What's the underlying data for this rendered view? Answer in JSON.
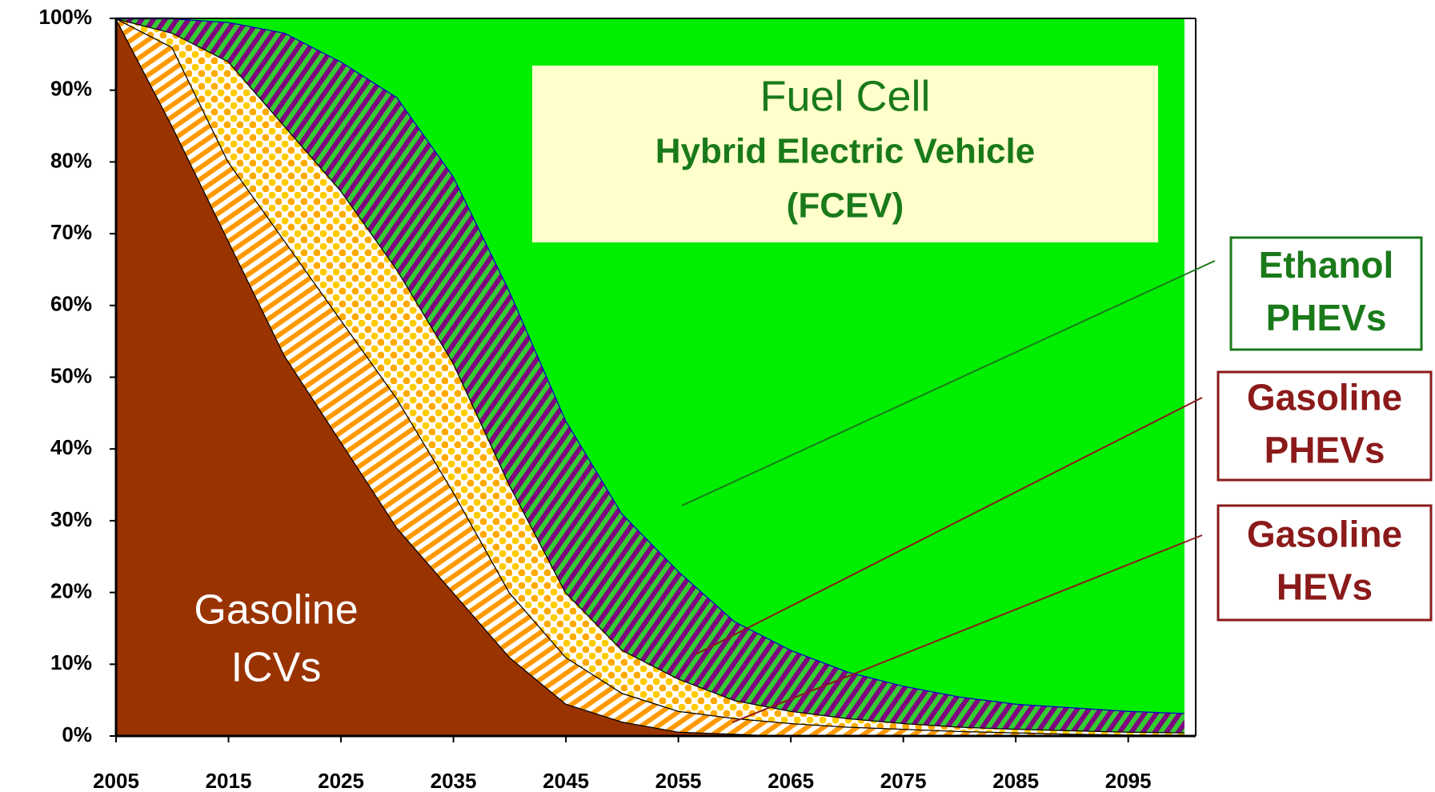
{
  "chart_data": {
    "type": "stacked_area",
    "x": [
      2005,
      2010,
      2015,
      2020,
      2025,
      2030,
      2035,
      2040,
      2045,
      2050,
      2055,
      2060,
      2065,
      2070,
      2075,
      2080,
      2085,
      2090,
      2095,
      2100
    ],
    "xlim": [
      2005,
      2101
    ],
    "xticks": [
      2005,
      2015,
      2025,
      2035,
      2045,
      2055,
      2065,
      2075,
      2085,
      2095
    ],
    "ylim": [
      0,
      100
    ],
    "yticks": [
      {
        "value": 0,
        "label": "0%"
      },
      {
        "value": 10,
        "label": "10%"
      },
      {
        "value": 20,
        "label": "20%"
      },
      {
        "value": 30,
        "label": "30%"
      },
      {
        "value": 40,
        "label": "40%"
      },
      {
        "value": 50,
        "label": "50%"
      },
      {
        "value": 60,
        "label": "60%"
      },
      {
        "value": 70,
        "label": "70%"
      },
      {
        "value": 80,
        "label": "80%"
      },
      {
        "value": 90,
        "label": "90%"
      },
      {
        "value": {
          "v": 100
        },
        "label": "100%"
      }
    ],
    "series": [
      {
        "name": [
          "Gasoline",
          "ICVs"
        ],
        "color": "#993300",
        "pattern": "solid",
        "label_color": "#ffffff",
        "values": [
          100,
          85,
          69,
          53,
          41,
          29,
          20,
          11,
          4.5,
          2,
          0.6,
          0.3,
          0,
          0,
          0,
          0,
          0,
          0,
          0,
          0
        ]
      },
      {
        "name": [
          "Gasoline",
          "HEVs"
        ],
        "color": "#ff9900",
        "pattern": "stripes",
        "label_color": "#8b1a1a",
        "values": [
          0,
          11,
          11,
          16,
          17,
          18,
          14,
          9,
          6.5,
          4,
          2.9,
          2.2,
          1.8,
          1.3,
          1,
          0.7,
          0.5,
          0.3,
          0.2,
          0.2
        ]
      },
      {
        "name": [
          "Gasoline",
          "PHEVs"
        ],
        "color": "#ffcc00",
        "pattern": "dots",
        "label_color": "#8b1a1a",
        "values": [
          0,
          2,
          14,
          16,
          18,
          18,
          18,
          15,
          9,
          6,
          4.5,
          2.5,
          1.7,
          1.2,
          0.8,
          0.6,
          0.5,
          0.5,
          0.4,
          0.3
        ]
      },
      {
        "name": [
          "Ethanol",
          "PHEVs"
        ],
        "color": "#800080",
        "pattern": "stripes2",
        "label_color": "#1a7a1a",
        "values": [
          0,
          2,
          5.5,
          13,
          18,
          24,
          26,
          27,
          24,
          19,
          15,
          11,
          8.5,
          6.5,
          5.2,
          4.2,
          3.5,
          3.2,
          2.9,
          2.7
        ]
      },
      {
        "name": [
          "Fuel Cell",
          "Hybrid Electric Vehicle",
          "(FCEV)"
        ],
        "color": "#00ee00",
        "pattern": "solid",
        "label_color": "#1a7a1a",
        "values": [
          0,
          0,
          0.5,
          2,
          6,
          11,
          22,
          38,
          56,
          69,
          77,
          84,
          88,
          91,
          93,
          94.5,
          95.5,
          96,
          96.5,
          96.8
        ]
      }
    ]
  }
}
